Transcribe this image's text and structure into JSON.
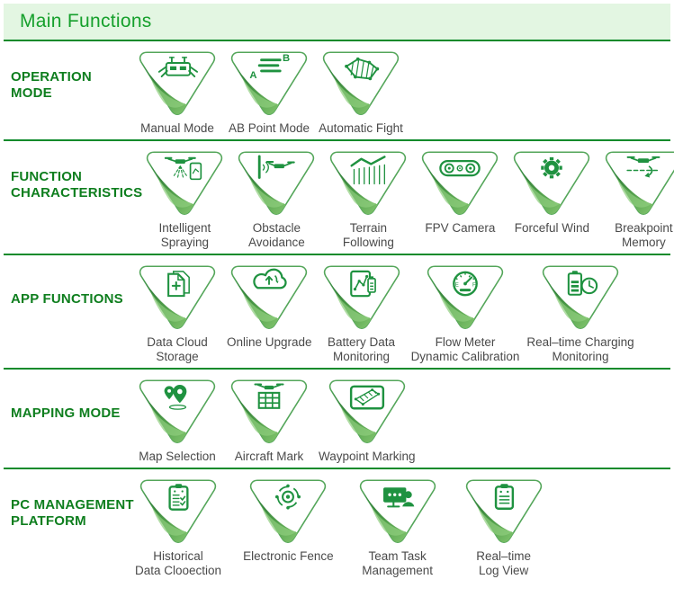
{
  "header": {
    "title": "Main Functions"
  },
  "theme": {
    "title_green": "#16a02c",
    "category_green": "#0e7e1e",
    "divider_green": "#0c8a2b",
    "header_bg": "#e3f6e2",
    "icon_green": "#1f9240",
    "swoosh_dark": "#1e6b30",
    "swoosh_light": "#82c56e",
    "label_gray": "#4a4a4a"
  },
  "sections": [
    {
      "label": "OPERATION\nMODE",
      "items": [
        {
          "icon": "remote-controller-icon",
          "label": "Manual Mode"
        },
        {
          "icon": "ab-point-icon",
          "label": "AB Point Mode"
        },
        {
          "icon": "field-polygon-icon",
          "label": "Automatic Fight"
        }
      ]
    },
    {
      "label": "FUNCTION\nCHARACTERISTICS",
      "items": [
        {
          "icon": "spraying-drone-icon",
          "label": "Intelligent\nSpraying"
        },
        {
          "icon": "obstacle-avoidance-icon",
          "label": "Obstacle\nAvoidance"
        },
        {
          "icon": "terrain-following-icon",
          "label": "Terrain\nFollowing"
        },
        {
          "icon": "fpv-camera-icon",
          "label": "FPV Camera"
        },
        {
          "icon": "fan-blade-icon",
          "label": "Forceful Wind"
        },
        {
          "icon": "breakpoint-return-icon",
          "label": "Breakpoint\nMemory"
        }
      ]
    },
    {
      "label": "APP FUNCTIONS",
      "items": [
        {
          "icon": "document-plus-icon",
          "label": "Data Cloud\nStorage"
        },
        {
          "icon": "cloud-refresh-icon",
          "label": "Online Upgrade"
        },
        {
          "icon": "battery-chart-tablet-icon",
          "label": "Battery Data\nMonitoring"
        },
        {
          "icon": "gauge-icon",
          "label": "Flow Meter\nDynamic Calibration"
        },
        {
          "icon": "battery-clock-icon",
          "label": "Real–time Charging\nMonitoring"
        }
      ]
    },
    {
      "label": "MAPPING MODE",
      "items": [
        {
          "icon": "map-pin-icon",
          "label": "Map Selection"
        },
        {
          "icon": "drone-grid-icon",
          "label": "Aircraft Mark"
        },
        {
          "icon": "waypoint-tablet-icon",
          "label": "Waypoint Marking"
        }
      ]
    },
    {
      "label": "PC MANAGEMENT\nPLATFORM",
      "items": [
        {
          "icon": "clipboard-checklist-icon",
          "label": "Historical\nData Clooection"
        },
        {
          "icon": "electronic-fence-icon",
          "label": "Electronic Fence"
        },
        {
          "icon": "team-monitor-icon",
          "label": "Team Task\nManagement"
        },
        {
          "icon": "log-clipboard-icon",
          "label": "Real–time\nLog View"
        }
      ]
    }
  ]
}
